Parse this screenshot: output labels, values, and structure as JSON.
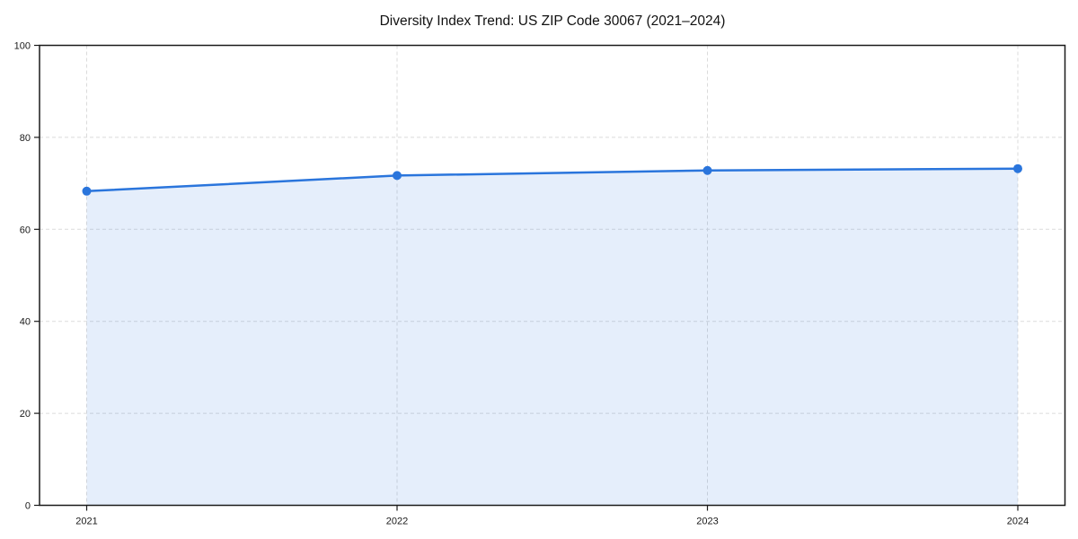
{
  "figure": {
    "background": "#FFFFFF"
  },
  "chart_data": {
    "type": "area",
    "title": "Diversity Index Trend: US ZIP Code 30067 (2021–2024)",
    "categories": [
      "2021",
      "2022",
      "2023",
      "2024"
    ],
    "series": [
      {
        "name": "Diversity Index",
        "values": [
          68.3,
          71.7,
          72.8,
          73.2
        ]
      }
    ],
    "xlabel": "",
    "ylabel": "",
    "ylim": [
      0,
      100
    ],
    "yticks": [
      0,
      20,
      40,
      60,
      80,
      100
    ],
    "grid": true,
    "grid_style": "dashed",
    "legend_position": "none",
    "marker": "circle",
    "colors": {
      "line": "#2A75DC",
      "marker": "#2A75DC",
      "fill": "#2A75DC",
      "fill_opacity": "0.12",
      "grid": "#DBDBDB",
      "axis": "#1A1A1A",
      "tick_label": "#1A1A1A",
      "title": "#111111",
      "background": "#FFFFFF"
    }
  }
}
